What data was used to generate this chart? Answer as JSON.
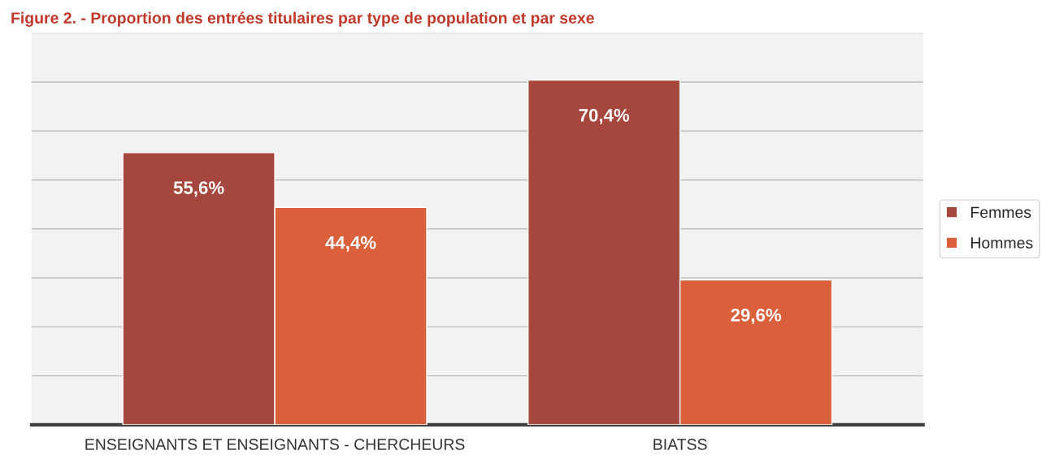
{
  "chart_data": {
    "type": "bar",
    "title": "Figure 2. - Proportion des entrées titulaires par type de population et par sexe",
    "categories": [
      "ENSEIGNANTS ET ENSEIGNANTS - CHERCHEURS",
      "BIATSS"
    ],
    "series": [
      {
        "name": "Femmes",
        "color": "#a5473d",
        "values": [
          55.6,
          70.4
        ],
        "value_labels": [
          "55,6%",
          "70,4%"
        ]
      },
      {
        "name": "Hommes",
        "color": "#d9603a",
        "values": [
          44.4,
          29.6
        ],
        "value_labels": [
          "44,4%",
          "29,6%"
        ]
      }
    ],
    "ylim": [
      0,
      80
    ],
    "yticks": [
      {
        "value": 0,
        "label": null
      },
      {
        "value": 10,
        "label": null
      },
      {
        "value": 20,
        "label": null
      },
      {
        "value": 30,
        "label": null
      },
      {
        "value": 40,
        "label": null
      },
      {
        "value": 50,
        "label": null
      },
      {
        "value": 60,
        "label": null
      },
      {
        "value": 70,
        "label": null
      },
      {
        "value": 80,
        "label": null
      }
    ],
    "grid": "y",
    "legend": "right"
  }
}
